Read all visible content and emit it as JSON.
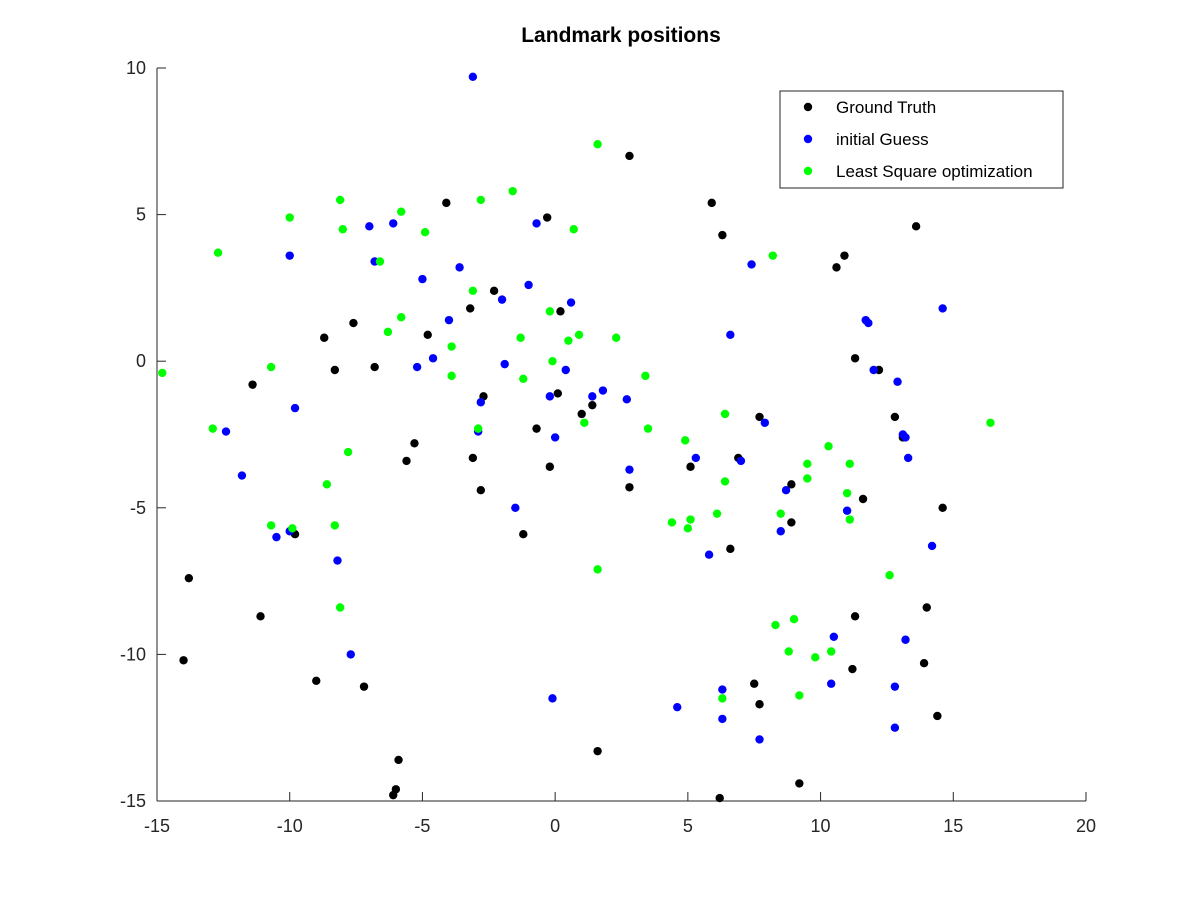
{
  "chart_data": {
    "type": "scatter",
    "title": "Landmark positions",
    "xlabel": "",
    "ylabel": "",
    "xlim": [
      -15,
      20
    ],
    "ylim": [
      -15,
      10
    ],
    "xticks": [
      -15,
      -10,
      -5,
      0,
      5,
      10,
      15,
      20
    ],
    "yticks": [
      -15,
      -10,
      -5,
      0,
      5,
      10
    ],
    "grid": false,
    "legend_position": "top-right",
    "series": [
      {
        "name": "Ground Truth",
        "color": "#000000",
        "points": [
          [
            2.8,
            7.0
          ],
          [
            -0.3,
            4.9
          ],
          [
            5.9,
            5.4
          ],
          [
            6.3,
            4.3
          ],
          [
            13.6,
            4.6
          ],
          [
            -4.1,
            5.4
          ],
          [
            10.9,
            3.6
          ],
          [
            10.6,
            3.2
          ],
          [
            -2.3,
            2.4
          ],
          [
            -3.2,
            1.8
          ],
          [
            0.2,
            1.7
          ],
          [
            -7.6,
            1.3
          ],
          [
            -8.7,
            0.8
          ],
          [
            -4.8,
            0.9
          ],
          [
            11.3,
            0.1
          ],
          [
            12.2,
            -0.3
          ],
          [
            -11.4,
            -0.8
          ],
          [
            -8.3,
            -0.3
          ],
          [
            -6.8,
            -0.2
          ],
          [
            0.1,
            -1.1
          ],
          [
            -2.7,
            -1.2
          ],
          [
            1.0,
            -1.8
          ],
          [
            1.4,
            -1.5
          ],
          [
            7.7,
            -1.9
          ],
          [
            12.8,
            -1.9
          ],
          [
            13.1,
            -2.6
          ],
          [
            -0.7,
            -2.3
          ],
          [
            -5.3,
            -2.8
          ],
          [
            -5.6,
            -3.4
          ],
          [
            -3.1,
            -3.3
          ],
          [
            -0.2,
            -3.6
          ],
          [
            5.1,
            -3.6
          ],
          [
            6.9,
            -3.3
          ],
          [
            -2.8,
            -4.4
          ],
          [
            2.8,
            -4.3
          ],
          [
            8.9,
            -4.2
          ],
          [
            11.6,
            -4.7
          ],
          [
            14.6,
            -5.0
          ],
          [
            -1.2,
            -5.9
          ],
          [
            8.9,
            -5.5
          ],
          [
            -9.8,
            -5.9
          ],
          [
            6.6,
            -6.4
          ],
          [
            -13.8,
            -7.4
          ],
          [
            -11.1,
            -8.7
          ],
          [
            11.3,
            -8.7
          ],
          [
            14.0,
            -8.4
          ],
          [
            -14.0,
            -10.2
          ],
          [
            11.2,
            -10.5
          ],
          [
            13.9,
            -10.3
          ],
          [
            -9.0,
            -10.9
          ],
          [
            -7.2,
            -11.1
          ],
          [
            7.5,
            -11.0
          ],
          [
            7.7,
            -11.7
          ],
          [
            14.4,
            -12.1
          ],
          [
            1.6,
            -13.3
          ],
          [
            -5.9,
            -13.6
          ],
          [
            -6.0,
            -14.6
          ],
          [
            -6.1,
            -14.8
          ],
          [
            9.2,
            -14.4
          ],
          [
            6.2,
            -14.9
          ]
        ]
      },
      {
        "name": "initial Guess",
        "color": "#0000ff",
        "points": [
          [
            -3.1,
            9.7
          ],
          [
            -0.7,
            4.7
          ],
          [
            -7.0,
            4.6
          ],
          [
            -6.1,
            4.7
          ],
          [
            -10.0,
            3.6
          ],
          [
            -6.8,
            3.4
          ],
          [
            -3.6,
            3.2
          ],
          [
            7.4,
            3.3
          ],
          [
            -5.0,
            2.8
          ],
          [
            -1.0,
            2.6
          ],
          [
            -2.0,
            2.1
          ],
          [
            0.6,
            2.0
          ],
          [
            14.6,
            1.8
          ],
          [
            -4.0,
            1.4
          ],
          [
            11.7,
            1.4
          ],
          [
            11.8,
            1.3
          ],
          [
            6.6,
            0.9
          ],
          [
            -4.6,
            0.1
          ],
          [
            -5.2,
            -0.2
          ],
          [
            -1.9,
            -0.1
          ],
          [
            0.4,
            -0.3
          ],
          [
            12.0,
            -0.3
          ],
          [
            12.9,
            -0.7
          ],
          [
            1.8,
            -1.0
          ],
          [
            1.4,
            -1.2
          ],
          [
            -0.2,
            -1.2
          ],
          [
            2.7,
            -1.3
          ],
          [
            -2.8,
            -1.4
          ],
          [
            -9.8,
            -1.6
          ],
          [
            7.9,
            -2.1
          ],
          [
            -12.4,
            -2.4
          ],
          [
            -2.9,
            -2.4
          ],
          [
            0.0,
            -2.6
          ],
          [
            13.1,
            -2.5
          ],
          [
            13.2,
            -2.6
          ],
          [
            5.3,
            -3.3
          ],
          [
            7.0,
            -3.4
          ],
          [
            13.3,
            -3.3
          ],
          [
            2.8,
            -3.7
          ],
          [
            -11.8,
            -3.9
          ],
          [
            8.7,
            -4.4
          ],
          [
            11.0,
            -5.1
          ],
          [
            -1.5,
            -5.0
          ],
          [
            -10.5,
            -6.0
          ],
          [
            -10.0,
            -5.8
          ],
          [
            8.5,
            -5.8
          ],
          [
            5.8,
            -6.6
          ],
          [
            -8.2,
            -6.8
          ],
          [
            14.2,
            -6.3
          ],
          [
            10.5,
            -9.4
          ],
          [
            13.2,
            -9.5
          ],
          [
            -7.7,
            -10.0
          ],
          [
            10.4,
            -11.0
          ],
          [
            12.8,
            -11.1
          ],
          [
            -0.1,
            -11.5
          ],
          [
            6.3,
            -11.2
          ],
          [
            4.6,
            -11.8
          ],
          [
            6.3,
            -12.2
          ],
          [
            12.8,
            -12.5
          ],
          [
            7.7,
            -12.9
          ]
        ]
      },
      {
        "name": "Least Square optimization",
        "color": "#00ff00",
        "points": [
          [
            1.6,
            7.4
          ],
          [
            -1.6,
            5.8
          ],
          [
            -8.1,
            5.5
          ],
          [
            -2.8,
            5.5
          ],
          [
            -5.8,
            5.1
          ],
          [
            -10.0,
            4.9
          ],
          [
            -8.0,
            4.5
          ],
          [
            -4.9,
            4.4
          ],
          [
            0.7,
            4.5
          ],
          [
            -12.7,
            3.7
          ],
          [
            -6.6,
            3.4
          ],
          [
            8.2,
            3.6
          ],
          [
            -3.1,
            2.4
          ],
          [
            -0.2,
            1.7
          ],
          [
            -5.8,
            1.5
          ],
          [
            -6.3,
            1.0
          ],
          [
            -1.3,
            0.8
          ],
          [
            0.9,
            0.9
          ],
          [
            2.3,
            0.8
          ],
          [
            0.5,
            0.7
          ],
          [
            -3.9,
            0.5
          ],
          [
            -0.1,
            0.0
          ],
          [
            -10.7,
            -0.2
          ],
          [
            -14.8,
            -0.4
          ],
          [
            -3.9,
            -0.5
          ],
          [
            -1.2,
            -0.6
          ],
          [
            3.4,
            -0.5
          ],
          [
            6.4,
            -1.8
          ],
          [
            16.4,
            -2.1
          ],
          [
            1.1,
            -2.1
          ],
          [
            -12.9,
            -2.3
          ],
          [
            -2.9,
            -2.3
          ],
          [
            3.5,
            -2.3
          ],
          [
            4.9,
            -2.7
          ],
          [
            10.3,
            -2.9
          ],
          [
            -7.8,
            -3.1
          ],
          [
            9.5,
            -3.5
          ],
          [
            11.1,
            -3.5
          ],
          [
            9.5,
            -4.0
          ],
          [
            6.4,
            -4.1
          ],
          [
            -8.6,
            -4.2
          ],
          [
            11.0,
            -4.5
          ],
          [
            4.4,
            -5.5
          ],
          [
            5.1,
            -5.4
          ],
          [
            5.0,
            -5.7
          ],
          [
            8.5,
            -5.2
          ],
          [
            11.1,
            -5.4
          ],
          [
            6.1,
            -5.2
          ],
          [
            -10.7,
            -5.6
          ],
          [
            -9.9,
            -5.7
          ],
          [
            -8.3,
            -5.6
          ],
          [
            1.6,
            -7.1
          ],
          [
            12.6,
            -7.3
          ],
          [
            -8.1,
            -8.4
          ],
          [
            8.3,
            -9.0
          ],
          [
            9.0,
            -8.8
          ],
          [
            8.8,
            -9.9
          ],
          [
            10.4,
            -9.9
          ],
          [
            9.8,
            -10.1
          ],
          [
            9.2,
            -11.4
          ],
          [
            6.3,
            -11.5
          ]
        ]
      }
    ]
  }
}
